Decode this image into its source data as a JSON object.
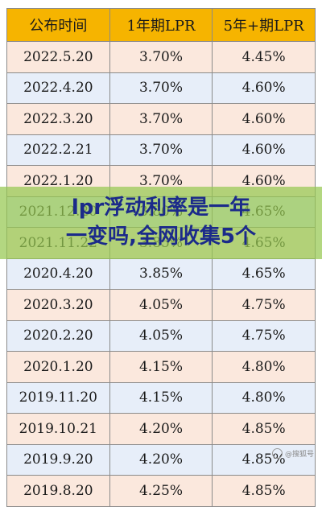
{
  "table": {
    "headers": [
      "公布时间",
      "1年期LPR",
      "5年+期LPR"
    ],
    "rows": [
      [
        "2022.5.20",
        "3.70%",
        "4.45%"
      ],
      [
        "2022.4.20",
        "3.70%",
        "4.60%"
      ],
      [
        "2022.3.20",
        "3.70%",
        "4.60%"
      ],
      [
        "2022.2.21",
        "3.70%",
        "4.60%"
      ],
      [
        "2022.1.20",
        "3.70%",
        "4.60%"
      ],
      [
        "2021.12.20",
        "3.80%",
        "4.65%"
      ],
      [
        "2021.11.22",
        "3.85%",
        "4.65%"
      ],
      [
        "2020.4.20",
        "3.85%",
        "4.65%"
      ],
      [
        "2020.3.20",
        "4.05%",
        "4.75%"
      ],
      [
        "2020.2.20",
        "4.05%",
        "4.75%"
      ],
      [
        "2020.1.20",
        "4.15%",
        "4.80%"
      ],
      [
        "2019.11.20",
        "4.15%",
        "4.80%"
      ],
      [
        "2019.10.21",
        "4.20%",
        "4.85%"
      ],
      [
        "2019.9.20",
        "4.20%",
        "4.85%"
      ],
      [
        "2019.8.20",
        "4.25%",
        "4.85%"
      ]
    ]
  },
  "banner": {
    "line1": "lpr浮动利率是一年",
    "line2": "一变吗,全网收集5个"
  },
  "watermark": {
    "text": "@搜狐号",
    "icon": "camera-icon"
  },
  "colors": {
    "header_bg": "#f6b400",
    "row_odd_bg": "#fbe8dd",
    "row_even_bg": "#e7eef9",
    "banner_text": "#1b2a8a"
  }
}
